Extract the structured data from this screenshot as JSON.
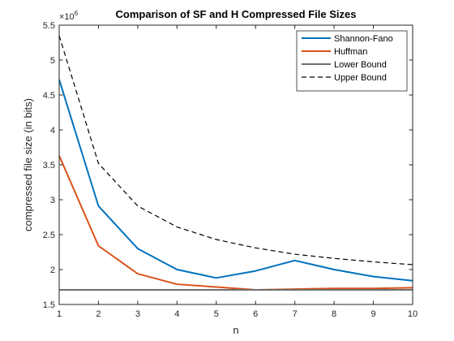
{
  "chart_data": {
    "type": "line",
    "title": "Comparison of SF and H Compressed File Sizes",
    "xlabel": "n",
    "ylabel": "compressed file size (in bits)",
    "y_exponent_label": "×10",
    "y_exponent_power": "6",
    "xlim": [
      1,
      10
    ],
    "ylim": [
      1.5,
      5.5
    ],
    "x_ticks": [
      1,
      2,
      3,
      4,
      5,
      6,
      7,
      8,
      9,
      10
    ],
    "x_tick_labels": [
      "1",
      "2",
      "3",
      "4",
      "5",
      "6",
      "7",
      "8",
      "9",
      "10"
    ],
    "y_ticks": [
      1.5,
      2,
      2.5,
      3,
      3.5,
      4,
      4.5,
      5,
      5.5
    ],
    "y_tick_labels": [
      "1.5",
      "2",
      "2.5",
      "3",
      "3.5",
      "4",
      "4.5",
      "5",
      "5.5"
    ],
    "grid": false,
    "legend_position": "top-right",
    "x": [
      1,
      2,
      3,
      4,
      5,
      6,
      7,
      8,
      9,
      10
    ],
    "series": [
      {
        "name": "Shannon-Fano",
        "color": "#0072BD",
        "style": "solid",
        "values": [
          4.72,
          2.91,
          2.3,
          2.0,
          1.88,
          1.98,
          2.13,
          2.0,
          1.9,
          1.84
        ]
      },
      {
        "name": "Huffman",
        "color": "#D95319",
        "style": "solid",
        "values": [
          3.63,
          2.34,
          1.94,
          1.79,
          1.75,
          1.71,
          1.72,
          1.73,
          1.73,
          1.74
        ]
      },
      {
        "name": "Lower Bound",
        "color": "#6e6e6e",
        "style": "solid",
        "values": [
          1.71,
          1.71,
          1.71,
          1.71,
          1.71,
          1.71,
          1.71,
          1.71,
          1.71,
          1.71
        ]
      },
      {
        "name": "Upper Bound",
        "color": "#000000",
        "style": "dashed",
        "values": [
          5.35,
          3.52,
          2.91,
          2.61,
          2.43,
          2.31,
          2.22,
          2.16,
          2.11,
          2.07
        ]
      }
    ]
  }
}
